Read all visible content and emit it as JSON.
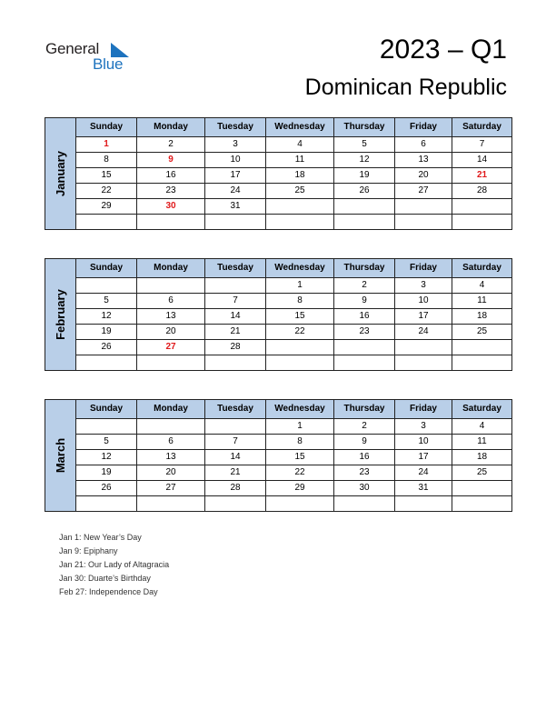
{
  "brand": {
    "line1": "General",
    "line2": "Blue",
    "accent": "#1e73be"
  },
  "title": "2023 – Q1",
  "country": "Dominican Republic",
  "weekdays": [
    "Sunday",
    "Monday",
    "Tuesday",
    "Wednesday",
    "Thursday",
    "Friday",
    "Saturday"
  ],
  "months": [
    {
      "name": "January",
      "weeks": [
        [
          "1",
          "2",
          "3",
          "4",
          "5",
          "6",
          "7"
        ],
        [
          "8",
          "9",
          "10",
          "11",
          "12",
          "13",
          "14"
        ],
        [
          "15",
          "16",
          "17",
          "18",
          "19",
          "20",
          "21"
        ],
        [
          "22",
          "23",
          "24",
          "25",
          "26",
          "27",
          "28"
        ],
        [
          "29",
          "30",
          "31",
          "",
          "",
          "",
          ""
        ],
        [
          "",
          "",
          "",
          "",
          "",
          "",
          ""
        ]
      ],
      "holidays": [
        "1",
        "9",
        "21",
        "30"
      ]
    },
    {
      "name": "February",
      "weeks": [
        [
          "",
          "",
          "",
          "1",
          "2",
          "3",
          "4"
        ],
        [
          "5",
          "6",
          "7",
          "8",
          "9",
          "10",
          "11"
        ],
        [
          "12",
          "13",
          "14",
          "15",
          "16",
          "17",
          "18"
        ],
        [
          "19",
          "20",
          "21",
          "22",
          "23",
          "24",
          "25"
        ],
        [
          "26",
          "27",
          "28",
          "",
          "",
          "",
          ""
        ],
        [
          "",
          "",
          "",
          "",
          "",
          "",
          ""
        ]
      ],
      "holidays": [
        "27"
      ]
    },
    {
      "name": "March",
      "weeks": [
        [
          "",
          "",
          "",
          "1",
          "2",
          "3",
          "4"
        ],
        [
          "5",
          "6",
          "7",
          "8",
          "9",
          "10",
          "11"
        ],
        [
          "12",
          "13",
          "14",
          "15",
          "16",
          "17",
          "18"
        ],
        [
          "19",
          "20",
          "21",
          "22",
          "23",
          "24",
          "25"
        ],
        [
          "26",
          "27",
          "28",
          "29",
          "30",
          "31",
          ""
        ],
        [
          "",
          "",
          "",
          "",
          "",
          "",
          ""
        ]
      ],
      "holidays": []
    }
  ],
  "holiday_color": "#e0191b",
  "header_color": "#b9cfe8",
  "notes": [
    "Jan 1: New Year’s Day",
    "Jan 9: Epiphany",
    "Jan 21: Our Lady of Altagracia",
    "Jan 30: Duarte’s Birthday",
    "Feb 27: Independence Day"
  ]
}
